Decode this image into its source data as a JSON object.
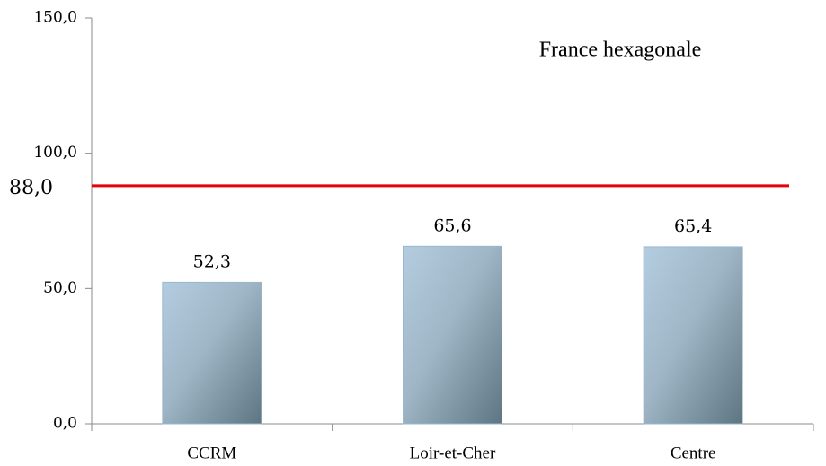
{
  "chart_data": {
    "type": "bar",
    "categories": [
      "CCRM",
      "Loir-et-Cher",
      "Centre"
    ],
    "values": [
      52.3,
      65.6,
      65.4
    ],
    "value_labels": [
      "52,3",
      "65,6",
      "65,4"
    ],
    "color": "#b3cde0",
    "ylim": [
      0,
      150
    ],
    "yticks": [
      {
        "value": 0,
        "label": "0,0"
      },
      {
        "value": 50,
        "label": "50,0"
      },
      {
        "value": 100,
        "label": "100,0"
      },
      {
        "value": 150,
        "label": "150,0"
      }
    ],
    "reference_line": {
      "value": 88,
      "label": "88,0",
      "name": "France hexagonale",
      "color": "#e8000b"
    }
  }
}
